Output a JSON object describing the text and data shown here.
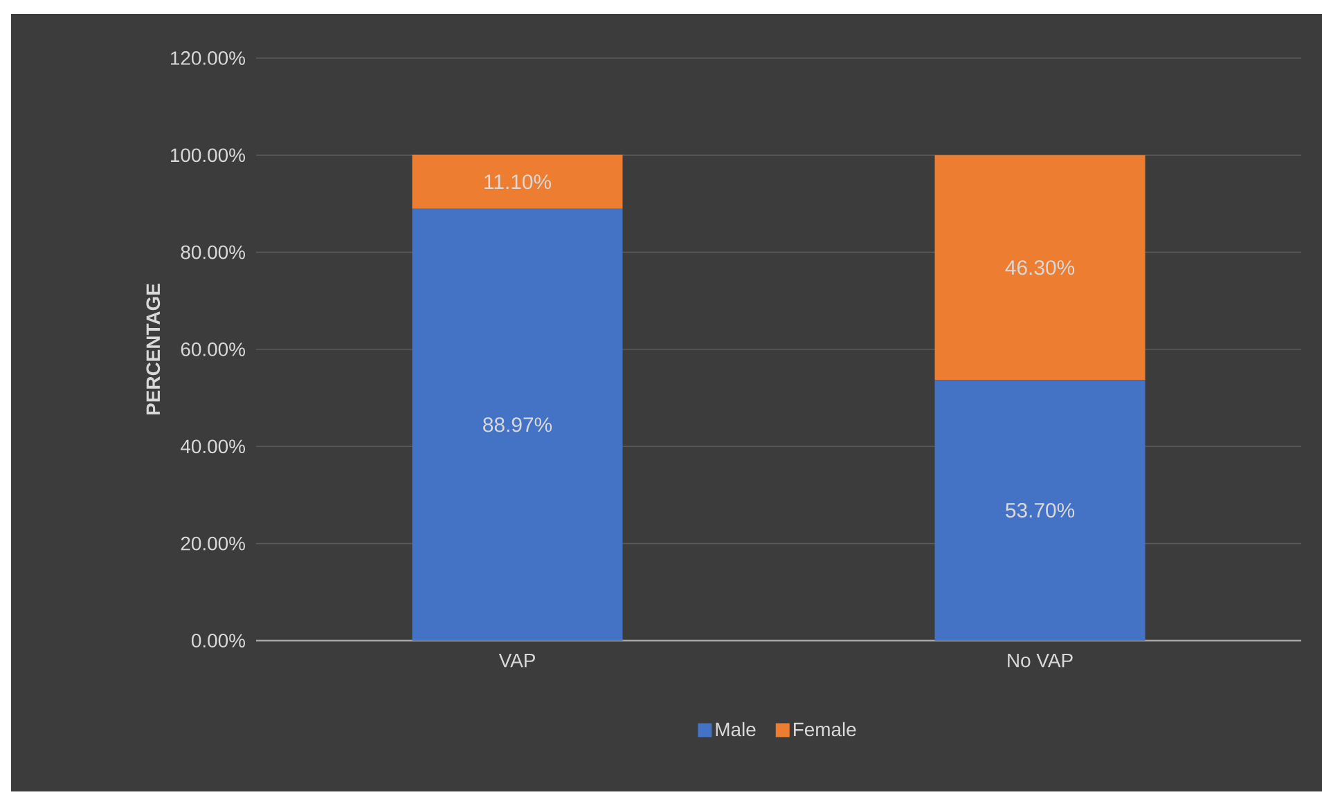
{
  "chart_data": {
    "type": "bar",
    "stacked": true,
    "ylabel": "PERCENTAGE",
    "categories": [
      "VAP",
      "No VAP"
    ],
    "series": [
      {
        "name": "Male",
        "color": "#4472c4",
        "values": [
          88.97,
          53.7
        ],
        "value_labels": [
          "88.97%",
          "53.70%"
        ]
      },
      {
        "name": "Female",
        "color": "#ed7d31",
        "values": [
          11.1,
          46.3
        ],
        "value_labels": [
          "11.10%",
          "46.30%"
        ]
      }
    ],
    "ylim": [
      0,
      120
    ],
    "yticks": [
      {
        "value": 0,
        "label": "0.00%"
      },
      {
        "value": 20,
        "label": "20.00%"
      },
      {
        "value": 40,
        "label": "40.00%"
      },
      {
        "value": 60,
        "label": "60.00%"
      },
      {
        "value": 80,
        "label": "80.00%"
      },
      {
        "value": 100,
        "label": "100.00%"
      },
      {
        "value": 120,
        "label": "120.00%"
      }
    ],
    "grid": "y",
    "legend": "bottom"
  }
}
